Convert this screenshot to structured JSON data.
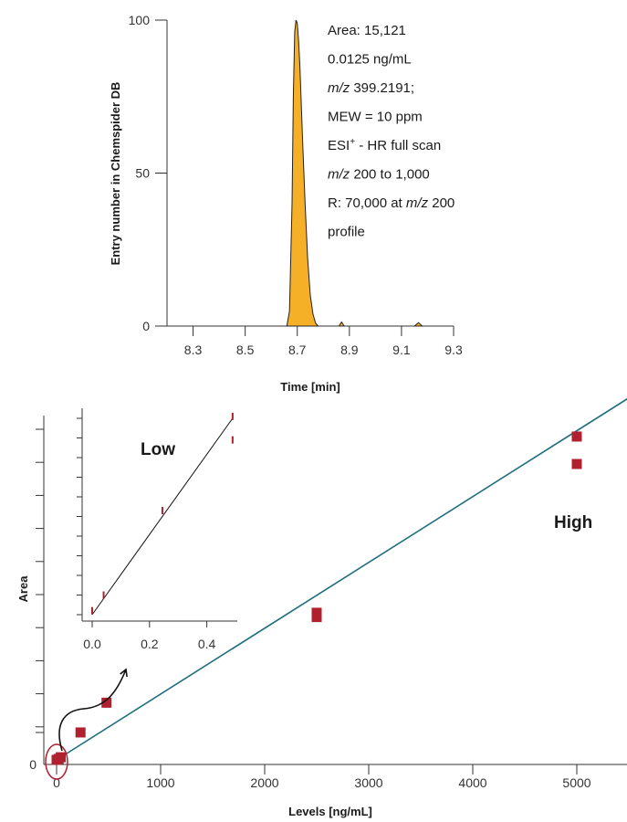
{
  "chart_data": [
    {
      "type": "area",
      "xlabel": "Time [min]",
      "ylabel": "Entry number in Chemspider DB",
      "xlim": [
        8.2,
        9.3
      ],
      "ylim": [
        0,
        100
      ],
      "x_ticks": [
        "8.3",
        "8.5",
        "8.7",
        "8.9",
        "9.1",
        "9.3"
      ],
      "y_ticks": [
        "0",
        "50",
        "100"
      ],
      "series_color": "#f5b027",
      "x": [
        8.66,
        8.67,
        8.68,
        8.685,
        8.69,
        8.695,
        8.7,
        8.705,
        8.71,
        8.72,
        8.73,
        8.74,
        8.75,
        8.76,
        8.77,
        8.78,
        8.86,
        8.87,
        8.88,
        9.15,
        9.165,
        9.18
      ],
      "y": [
        0,
        5,
        40,
        75,
        96,
        100,
        99,
        93,
        85,
        62,
        40,
        22,
        10,
        4,
        1,
        0,
        0,
        1.3,
        0,
        0,
        1.1,
        0
      ],
      "annotations": [
        {
          "text": "Area: 15,121"
        },
        {
          "text": "0.0125 ng/mL"
        },
        {
          "italic": "m/z",
          "text": " 399.2191;"
        },
        {
          "text": "MEW = 10 ppm"
        },
        {
          "text": "ESI",
          "sup": "+",
          "after": " - HR full scan"
        },
        {
          "italic": "m/z",
          "text": " 200 to 1,000"
        },
        {
          "text": "R: 70,000 at ",
          "italic": "m/z",
          "after": " 200"
        },
        {
          "text": "profile"
        }
      ]
    },
    {
      "type": "scatter",
      "xlabel": "Levels [ng/mL]",
      "ylabel": "Area",
      "xlim": [
        -50,
        5500
      ],
      "ylim": [
        -25,
        1050
      ],
      "x_ticks": [
        "0",
        "1000",
        "2000",
        "3000",
        "4000",
        "5000"
      ],
      "y_ticks": [
        "0"
      ],
      "marker_color": "#b0202e",
      "line_color": "#1e6f7e",
      "fit_line": {
        "x": [
          0,
          5500
        ],
        "y": [
          0,
          1095
        ]
      },
      "points": [
        {
          "x": 0,
          "y": 0
        },
        {
          "x": 20,
          "y": 3
        },
        {
          "x": 40,
          "y": 8
        },
        {
          "x": 230,
          "y": 83
        },
        {
          "x": 480,
          "y": 173
        },
        {
          "x": 2500,
          "y": 432
        },
        {
          "x": 2500,
          "y": 445
        },
        {
          "x": 5000,
          "y": 895
        },
        {
          "x": 5000,
          "y": 978
        }
      ],
      "annotations": [
        "Low",
        "High"
      ],
      "inset": {
        "xlim": [
          0,
          0.5
        ],
        "ylim": [
          0,
          100
        ],
        "x_ticks": [
          "0.0",
          "0.2",
          "0.4"
        ],
        "line": {
          "x": [
            0,
            0.49
          ],
          "y": [
            0,
            100
          ]
        },
        "points": [
          {
            "x": 0.0,
            "y": 2
          },
          {
            "x": 0.04,
            "y": 10
          },
          {
            "x": 0.245,
            "y": 53
          },
          {
            "x": 0.49,
            "y": 89
          },
          {
            "x": 0.49,
            "y": 101
          }
        ]
      }
    }
  ]
}
